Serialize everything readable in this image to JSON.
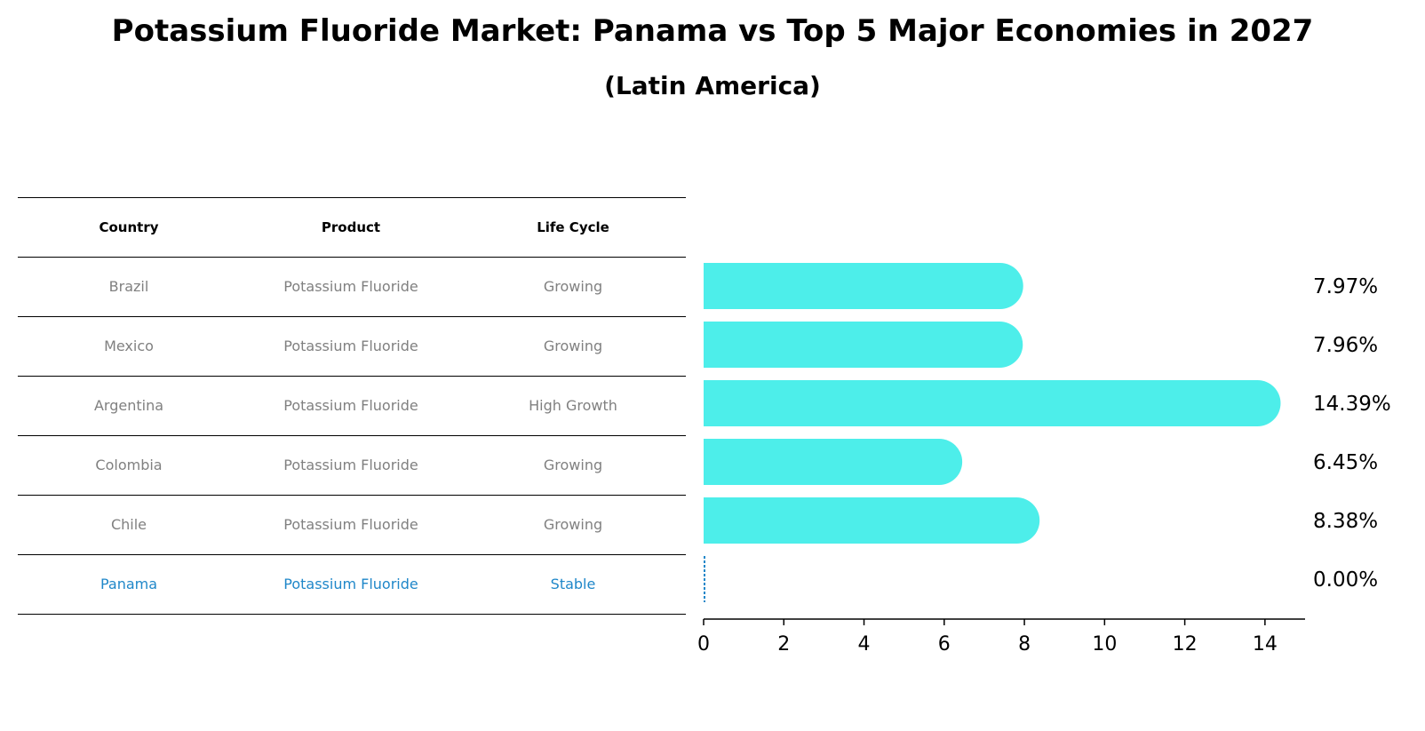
{
  "title": "Potassium Fluoride Market: Panama vs Top 5 Major Economies in 2027",
  "subtitle": "(Latin America)",
  "table": {
    "headers": [
      "Country",
      "Product",
      "Life Cycle"
    ],
    "rows": [
      {
        "country": "Brazil",
        "product": "Potassium Fluoride",
        "life_cycle": "Growing"
      },
      {
        "country": "Mexico",
        "product": "Potassium Fluoride",
        "life_cycle": "Growing"
      },
      {
        "country": "Argentina",
        "product": "Potassium Fluoride",
        "life_cycle": "High Growth"
      },
      {
        "country": "Colombia",
        "product": "Potassium Fluoride",
        "life_cycle": "Growing"
      },
      {
        "country": "Chile",
        "product": "Potassium Fluoride",
        "life_cycle": "Growing"
      },
      {
        "country": "Panama",
        "product": "Potassium Fluoride",
        "life_cycle": "Stable"
      }
    ]
  },
  "colors": {
    "bar": "#4deeea",
    "highlight": "#1f87c9",
    "muted_text": "#808080"
  },
  "chart_data": {
    "type": "bar",
    "orientation": "horizontal",
    "categories": [
      "Brazil",
      "Mexico",
      "Argentina",
      "Colombia",
      "Chile",
      "Panama"
    ],
    "values": [
      7.97,
      7.96,
      14.39,
      6.45,
      8.38,
      0.0
    ],
    "value_labels": [
      "7.97%",
      "7.96%",
      "14.39%",
      "6.45%",
      "8.38%",
      "0.00%"
    ],
    "xlim": [
      0,
      15
    ],
    "xticks": [
      0,
      2,
      4,
      6,
      8,
      10,
      12,
      14
    ],
    "grid": false,
    "highlight": "Panama"
  }
}
